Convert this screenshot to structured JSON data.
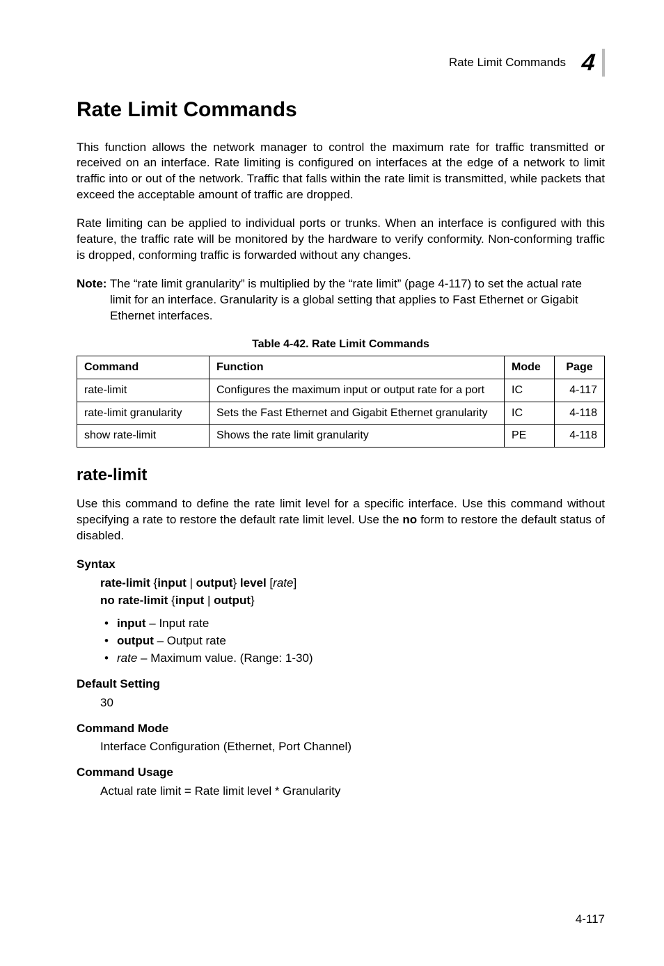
{
  "header": {
    "running_title": "Rate Limit Commands",
    "chapter_number": "4"
  },
  "h1": "Rate Limit Commands",
  "para1": "This function allows the network manager to control the maximum rate for traffic transmitted or received on an interface. Rate limiting is configured on interfaces at the edge of a network to limit traffic into or out of the network. Traffic that falls within the rate limit is transmitted, while packets that exceed the acceptable amount of traffic are dropped.",
  "para2": "Rate limiting can be applied to individual ports or trunks. When an interface is configured with this feature, the traffic rate will be monitored by the hardware to verify conformity. Non-conforming traffic is dropped, conforming traffic is forwarded without any changes.",
  "note": {
    "label": "Note:",
    "text": "The “rate limit granularity” is multiplied by the “rate limit” (page 4-117) to set the actual rate limit for an interface. Granularity is a global setting that applies to Fast Ethernet or Gigabit Ethernet interfaces."
  },
  "table": {
    "caption": "Table 4-42.   Rate Limit Commands",
    "headers": {
      "c1": "Command",
      "c2": "Function",
      "c3": "Mode",
      "c4": "Page"
    },
    "rows": [
      {
        "c1": "rate-limit",
        "c2": "Configures the maximum input or output rate for a port",
        "c3": "IC",
        "c4": "4-117"
      },
      {
        "c1": "rate-limit granularity",
        "c2": "Sets the Fast Ethernet and Gigabit Ethernet granularity",
        "c3": "IC",
        "c4": "4-118"
      },
      {
        "c1": "show rate-limit",
        "c2": "Shows the rate limit granularity",
        "c3": "PE",
        "c4": "4-118"
      }
    ]
  },
  "h2": "rate-limit",
  "cmd_desc_pre": "Use this command to define the rate limit level for a specific interface. Use this command without specifying a rate to restore the default rate limit level. Use the ",
  "cmd_desc_bold": "no",
  "cmd_desc_post": " form to restore the default status of disabled.",
  "syntax": {
    "label": "Syntax",
    "line1": {
      "a": "rate-limit",
      "b": " {",
      "c": "input",
      "d": " | ",
      "e": "output",
      "f": "} ",
      "g": "level",
      "h": " [",
      "i": "rate",
      "j": "]"
    },
    "line2": {
      "a": "no rate-limit",
      "b": " {",
      "c": "input",
      "d": " | ",
      "e": "output",
      "f": "}"
    },
    "bullets": [
      {
        "term": "input",
        "desc": " – Input rate"
      },
      {
        "term": "output",
        "desc": " – Output rate"
      },
      {
        "term": "rate",
        "desc": " – Maximum value. (Range: 1-30)",
        "italic": true
      }
    ]
  },
  "default_setting": {
    "label": "Default Setting",
    "value": "30"
  },
  "command_mode": {
    "label": "Command Mode",
    "value": "Interface Configuration (Ethernet, Port Channel)"
  },
  "command_usage": {
    "label": "Command Usage",
    "value": "Actual rate limit = Rate limit level * Granularity"
  },
  "footer_page": "4-117"
}
